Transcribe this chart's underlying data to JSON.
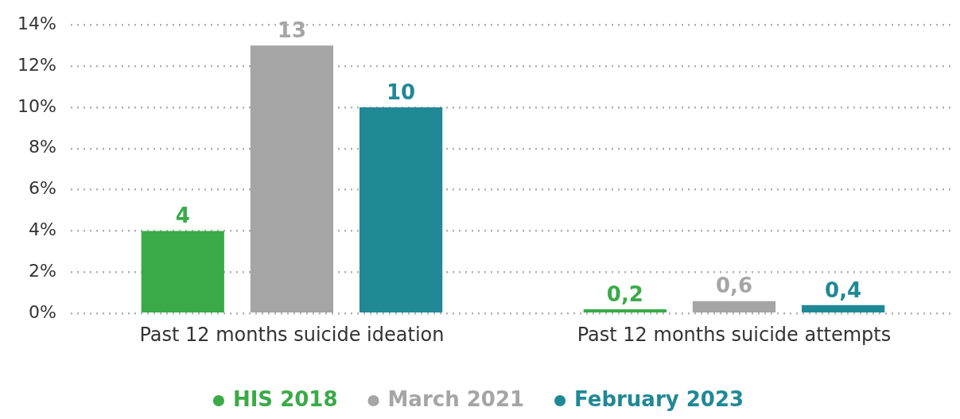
{
  "chart_data": {
    "type": "bar",
    "categories": [
      "Past 12 months suicide ideation",
      "Past 12 months suicide attempts"
    ],
    "series": [
      {
        "name": "HIS 2018",
        "color": "#3aaa48",
        "values": [
          4,
          0.2
        ],
        "value_labels": [
          "4",
          "0,2"
        ]
      },
      {
        "name": "March 2021",
        "color": "#a5a5a5",
        "values": [
          13,
          0.6
        ],
        "value_labels": [
          "13",
          "0,6"
        ]
      },
      {
        "name": "February 2023",
        "color": "#218896",
        "values": [
          10,
          0.4
        ],
        "value_labels": [
          "10",
          "0,4"
        ]
      }
    ],
    "ylim": [
      0,
      14
    ],
    "yticks": [
      {
        "value": 0,
        "label": "0%"
      },
      {
        "value": 2,
        "label": "2%"
      },
      {
        "value": 4,
        "label": "4%"
      },
      {
        "value": 6,
        "label": "6%"
      },
      {
        "value": 8,
        "label": "8%"
      },
      {
        "value": 10,
        "label": "10%"
      },
      {
        "value": 12,
        "label": "12%"
      },
      {
        "value": 14,
        "label": "14%"
      }
    ],
    "grid": "y",
    "legend": "bottom"
  }
}
